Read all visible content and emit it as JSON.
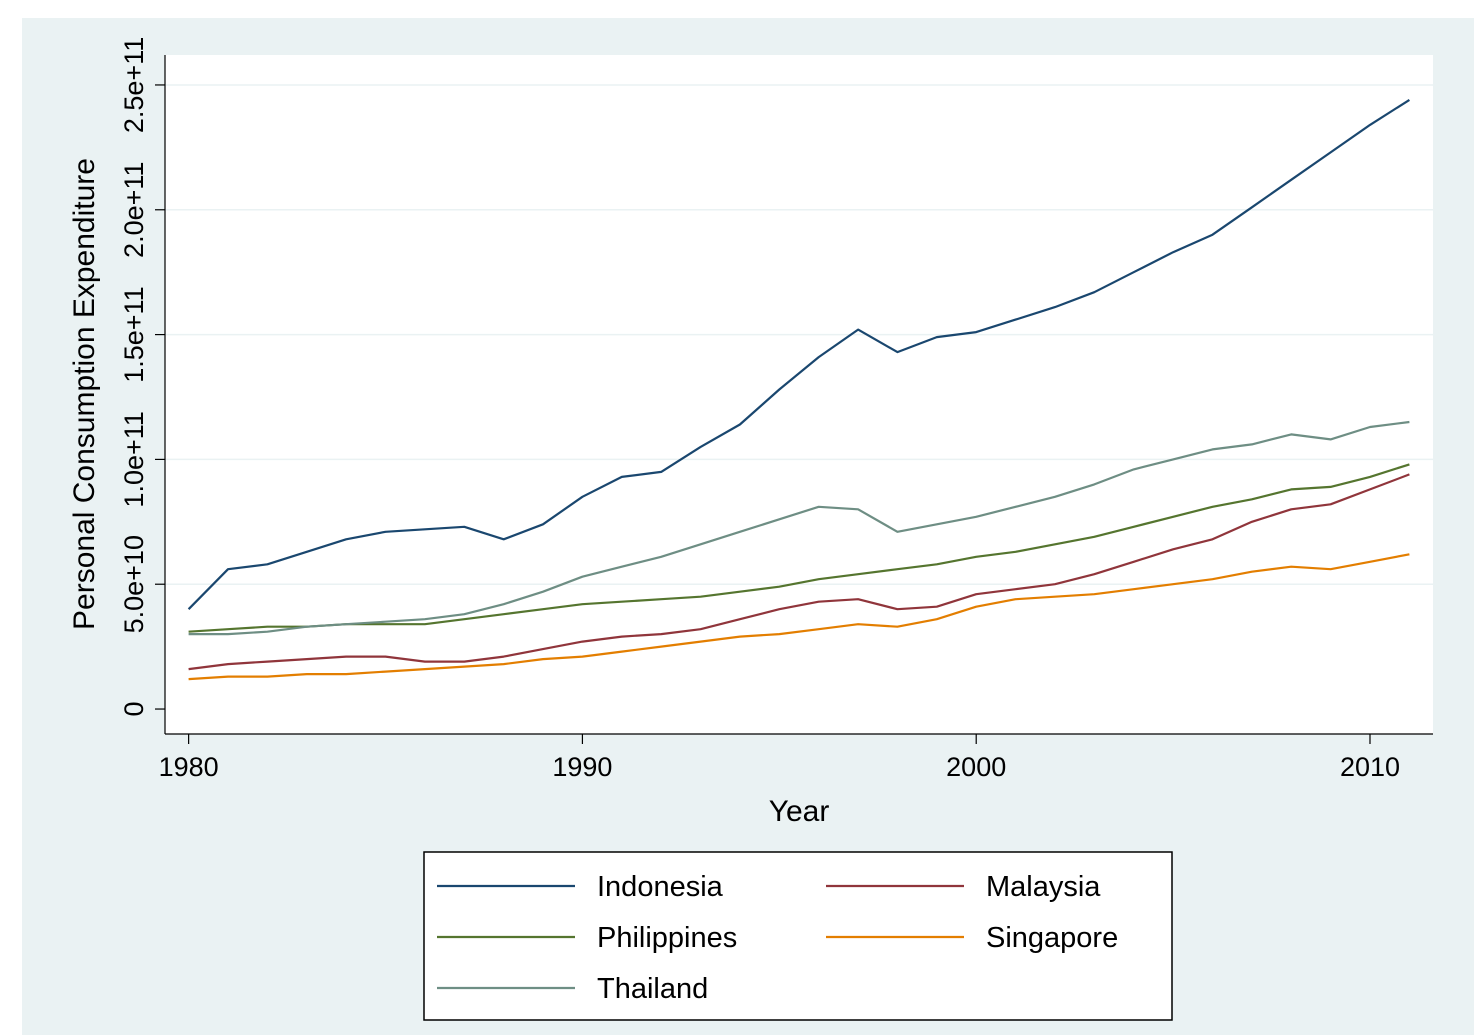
{
  "chart_data": {
    "type": "line",
    "xlabel": "Year",
    "ylabel": "Personal Consumption Expenditure",
    "xlim": [
      1979.4,
      2011.6
    ],
    "ylim": [
      -10000000000.0,
      262000000000.0
    ],
    "x_ticks": [
      1980,
      1990,
      2000,
      2010
    ],
    "x_tick_labels": [
      "1980",
      "1990",
      "2000",
      "2010"
    ],
    "y_ticks": [
      0,
      50000000000.0,
      100000000000.0,
      150000000000.0,
      200000000000.0,
      250000000000.0
    ],
    "y_tick_labels": [
      "0",
      "5.0e+10",
      "1.0e+11",
      "1.5e+11",
      "2.0e+11",
      "2.5e+11"
    ],
    "grid": "horizontal",
    "legend_position": "bottom",
    "x": [
      1980,
      1981,
      1982,
      1983,
      1984,
      1985,
      1986,
      1987,
      1988,
      1989,
      1990,
      1991,
      1992,
      1993,
      1994,
      1995,
      1996,
      1997,
      1998,
      1999,
      2000,
      2001,
      2002,
      2003,
      2004,
      2005,
      2006,
      2007,
      2008,
      2009,
      2010,
      2011
    ],
    "series": [
      {
        "name": "Indonesia",
        "color": "#1a476f",
        "values": [
          40000000000.0,
          56000000000.0,
          58000000000.0,
          63000000000.0,
          68000000000.0,
          71000000000.0,
          72000000000.0,
          73000000000.0,
          68000000000.0,
          74000000000.0,
          85000000000.0,
          93000000000.0,
          95000000000.0,
          105000000000.0,
          114000000000.0,
          128000000000.0,
          141000000000.0,
          152000000000.0,
          143000000000.0,
          149000000000.0,
          151000000000.0,
          156000000000.0,
          161000000000.0,
          167000000000.0,
          175000000000.0,
          183000000000.0,
          190000000000.0,
          201000000000.0,
          212000000000.0,
          223000000000.0,
          234000000000.0,
          244000000000.0
        ]
      },
      {
        "name": "Malaysia",
        "color": "#90353b",
        "values": [
          16000000000.0,
          18000000000.0,
          19000000000.0,
          20000000000.0,
          21000000000.0,
          21000000000.0,
          19000000000.0,
          19000000000.0,
          21000000000.0,
          24000000000.0,
          27000000000.0,
          29000000000.0,
          30000000000.0,
          32000000000.0,
          36000000000.0,
          40000000000.0,
          43000000000.0,
          44000000000.0,
          40000000000.0,
          41000000000.0,
          46000000000.0,
          48000000000.0,
          50000000000.0,
          54000000000.0,
          59000000000.0,
          64000000000.0,
          68000000000.0,
          75000000000.0,
          80000000000.0,
          82000000000.0,
          88000000000.0,
          94000000000.0
        ]
      },
      {
        "name": "Philippines",
        "color": "#55752f",
        "values": [
          31000000000.0,
          32000000000.0,
          33000000000.0,
          33000000000.0,
          34000000000.0,
          34000000000.0,
          34000000000.0,
          36000000000.0,
          38000000000.0,
          40000000000.0,
          42000000000.0,
          43000000000.0,
          44000000000.0,
          45000000000.0,
          47000000000.0,
          49000000000.0,
          52000000000.0,
          54000000000.0,
          56000000000.0,
          58000000000.0,
          61000000000.0,
          63000000000.0,
          66000000000.0,
          69000000000.0,
          73000000000.0,
          77000000000.0,
          81000000000.0,
          84000000000.0,
          88000000000.0,
          89000000000.0,
          93000000000.0,
          98000000000.0
        ]
      },
      {
        "name": "Singapore",
        "color": "#e37e00",
        "values": [
          12000000000.0,
          13000000000.0,
          13000000000.0,
          14000000000.0,
          14000000000.0,
          15000000000.0,
          16000000000.0,
          17000000000.0,
          18000000000.0,
          20000000000.0,
          21000000000.0,
          23000000000.0,
          25000000000.0,
          27000000000.0,
          29000000000.0,
          30000000000.0,
          32000000000.0,
          34000000000.0,
          33000000000.0,
          36000000000.0,
          41000000000.0,
          44000000000.0,
          45000000000.0,
          46000000000.0,
          48000000000.0,
          50000000000.0,
          52000000000.0,
          55000000000.0,
          57000000000.0,
          56000000000.0,
          59000000000.0,
          62000000000.0
        ]
      },
      {
        "name": "Thailand",
        "color": "#6e8e84",
        "values": [
          30000000000.0,
          30000000000.0,
          31000000000.0,
          33000000000.0,
          34000000000.0,
          35000000000.0,
          36000000000.0,
          38000000000.0,
          42000000000.0,
          47000000000.0,
          53000000000.0,
          57000000000.0,
          61000000000.0,
          66000000000.0,
          71000000000.0,
          76000000000.0,
          81000000000.0,
          80000000000.0,
          71000000000.0,
          74000000000.0,
          77000000000.0,
          81000000000.0,
          85000000000.0,
          90000000000.0,
          96000000000.0,
          100000000000.0,
          104000000000.0,
          106000000000.0,
          110000000000.0,
          108000000000.0,
          113000000000.0,
          115000000000.0
        ]
      }
    ]
  },
  "legend": {
    "items": [
      "Indonesia",
      "Malaysia",
      "Philippines",
      "Singapore",
      "Thailand"
    ]
  }
}
